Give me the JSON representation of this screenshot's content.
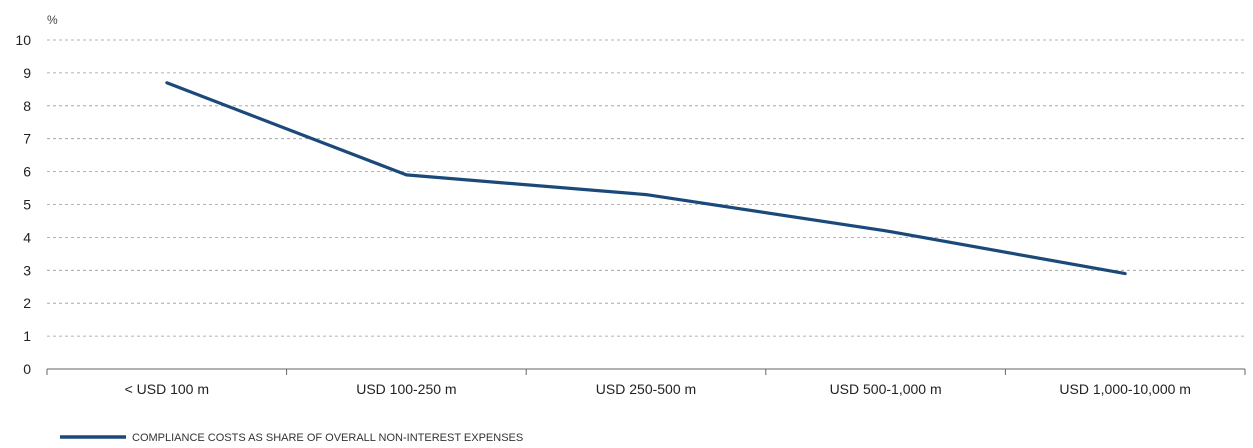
{
  "chart_data": {
    "type": "line",
    "ylabel": "%",
    "ylim": [
      0,
      10
    ],
    "yticks": [
      "0",
      "1",
      "2",
      "3",
      "4",
      "5",
      "6",
      "7",
      "8",
      "9",
      "10"
    ],
    "categories": [
      "< USD 100 m",
      "USD 100-250 m",
      "USD 250-500 m",
      "USD 500-1,000 m",
      "USD 1,000-10,000 m"
    ],
    "series": [
      {
        "name": "COMPLIANCE COSTS AS SHARE OF OVERALL NON-INTEREST EXPENSES",
        "values": [
          8.7,
          5.9,
          5.3,
          4.2,
          2.9
        ],
        "color": "#1b4a7a"
      }
    ],
    "grid": true,
    "legend_position": "bottom-left"
  }
}
